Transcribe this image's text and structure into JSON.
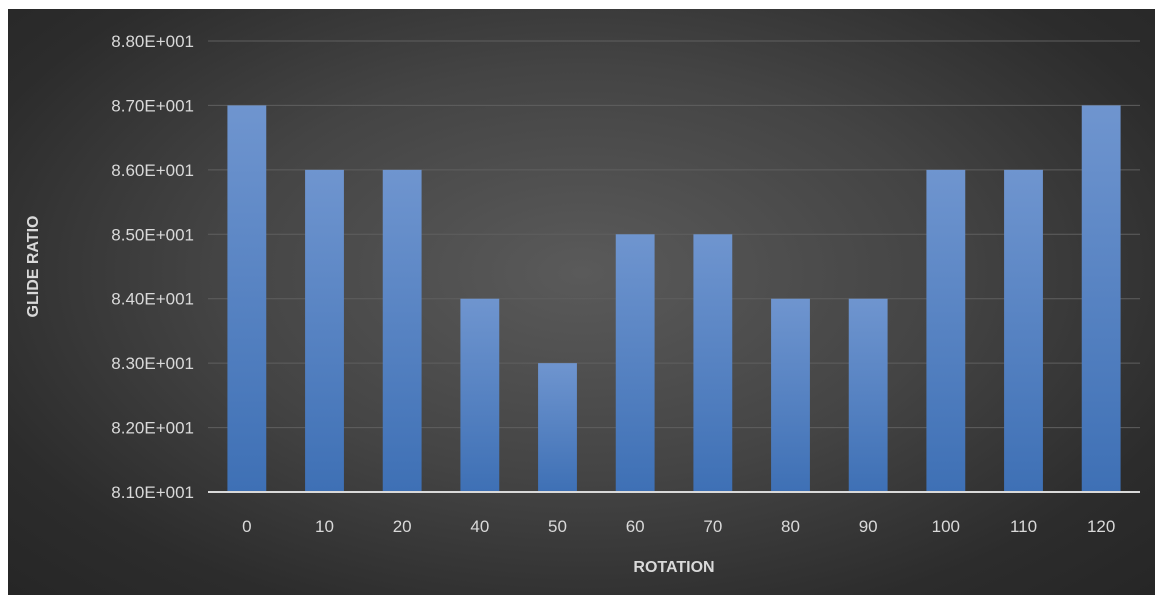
{
  "chart_data": {
    "type": "bar",
    "title": "",
    "xlabel": "ROTATION",
    "ylabel": "GLIDE RATIO",
    "categories": [
      "0",
      "10",
      "20",
      "40",
      "50",
      "60",
      "70",
      "80",
      "90",
      "100",
      "110",
      "120"
    ],
    "values": [
      87.0,
      86.0,
      86.0,
      84.0,
      83.0,
      85.0,
      85.0,
      84.0,
      84.0,
      86.0,
      86.0,
      87.0
    ],
    "ylim": [
      81.0,
      88.0
    ],
    "yticks": [
      81,
      82,
      83,
      84,
      85,
      86,
      87,
      88
    ],
    "ytick_labels": [
      "8.10E+001",
      "8.20E+001",
      "8.30E+001",
      "8.40E+001",
      "8.50E+001",
      "8.60E+001",
      "8.70E+001",
      "8.80E+001"
    ],
    "grid": true,
    "legend": "none",
    "colors": {
      "bar_top": "#6f95cf",
      "bar_bottom": "#3e70b5",
      "grid": "#5f5f5f",
      "axis": "#d9d9d9",
      "text": "#d9d9d9"
    }
  }
}
